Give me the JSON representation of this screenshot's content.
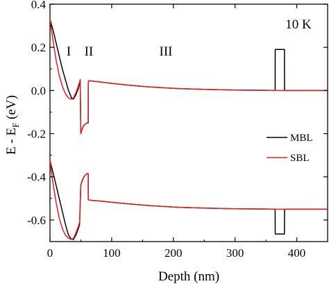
{
  "chart_data": {
    "type": "line",
    "xlabel": "Depth (nm)",
    "ylabel_main": "E - E",
    "ylabel_sub": "F",
    "ylabel_unit": " (eV)",
    "xlim": [
      0,
      450
    ],
    "ylim": [
      -0.7,
      0.4
    ],
    "xticks": [
      0,
      100,
      200,
      300,
      400
    ],
    "yticks": [
      0.4,
      0.2,
      0.0,
      -0.2,
      -0.4,
      -0.6
    ],
    "ytick_labels": [
      "0.4",
      "0.2",
      "0.0",
      "-0.2",
      "-0.4",
      "-0.6"
    ],
    "xtick_labels": [
      "0",
      "100",
      "200",
      "300",
      "400"
    ],
    "annotations": {
      "temperature": "10 K",
      "regions": [
        {
          "label": "I",
          "x": 30,
          "y": 0.18
        },
        {
          "label": "II",
          "x": 60,
          "y": 0.18
        },
        {
          "label": "III",
          "x": 185,
          "y": 0.18
        }
      ]
    },
    "legend": {
      "placement": "center-right",
      "entries": [
        {
          "name": "MBL",
          "color": "#000000"
        },
        {
          "name": "SBL",
          "color": "#e0201b"
        }
      ]
    },
    "series": [
      {
        "name": "MBL",
        "band": "conduction",
        "color": "#000000",
        "x": [
          0,
          5,
          10,
          15,
          20,
          25,
          30,
          35,
          38,
          42,
          46,
          48,
          49,
          50,
          52,
          55,
          58,
          60,
          62,
          62.1,
          63,
          65,
          70,
          80,
          100,
          130,
          160,
          200,
          250,
          300,
          350,
          365,
          365.1,
          366,
          380,
          380.1,
          381,
          400,
          450
        ],
        "y": [
          0.33,
          0.28,
          0.22,
          0.16,
          0.1,
          0.05,
          0.0,
          -0.035,
          -0.04,
          -0.02,
          0.01,
          0.03,
          0.05,
          -0.2,
          -0.18,
          -0.16,
          -0.155,
          -0.15,
          -0.15,
          0.04,
          0.045,
          0.045,
          0.043,
          0.04,
          0.033,
          0.024,
          0.017,
          0.01,
          0.005,
          0.002,
          0.001,
          0.0,
          0.19,
          0.19,
          0.19,
          0.0,
          0.0,
          0.0,
          0.0
        ]
      },
      {
        "name": "SBL",
        "band": "conduction",
        "color": "#e0201b",
        "x": [
          0,
          5,
          10,
          15,
          20,
          25,
          30,
          35,
          38,
          42,
          46,
          48,
          49,
          50,
          52,
          55,
          58,
          60,
          62,
          62.1,
          63,
          65,
          70,
          80,
          100,
          130,
          160,
          200,
          250,
          300,
          350,
          365,
          380,
          400,
          450
        ],
        "y": [
          0.33,
          0.23,
          0.14,
          0.07,
          0.02,
          -0.015,
          -0.035,
          -0.04,
          -0.035,
          -0.01,
          0.02,
          0.04,
          0.05,
          -0.2,
          -0.18,
          -0.16,
          -0.155,
          -0.15,
          -0.15,
          0.04,
          0.045,
          0.045,
          0.043,
          0.04,
          0.033,
          0.024,
          0.017,
          0.01,
          0.005,
          0.002,
          0.001,
          0.0,
          0.0,
          0.0,
          0.0
        ]
      },
      {
        "name": "MBL",
        "band": "valence",
        "color": "#000000",
        "x": [
          0,
          5,
          10,
          15,
          20,
          25,
          30,
          35,
          38,
          42,
          46,
          48,
          50,
          52,
          55,
          58,
          60,
          62,
          62.1,
          63,
          65,
          70,
          80,
          100,
          130,
          160,
          200,
          250,
          300,
          350,
          365,
          365.1,
          366,
          380,
          380.1,
          381,
          400,
          450
        ],
        "y": [
          -0.325,
          -0.38,
          -0.44,
          -0.5,
          -0.56,
          -0.62,
          -0.67,
          -0.69,
          -0.69,
          -0.67,
          -0.64,
          -0.62,
          -0.44,
          -0.42,
          -0.4,
          -0.39,
          -0.385,
          -0.385,
          -0.505,
          -0.508,
          -0.508,
          -0.51,
          -0.512,
          -0.518,
          -0.526,
          -0.533,
          -0.54,
          -0.545,
          -0.548,
          -0.549,
          -0.55,
          -0.665,
          -0.665,
          -0.665,
          -0.55,
          -0.55,
          -0.55,
          -0.55
        ]
      },
      {
        "name": "SBL",
        "band": "valence",
        "color": "#e0201b",
        "x": [
          0,
          5,
          10,
          15,
          20,
          25,
          30,
          35,
          38,
          42,
          46,
          48,
          50,
          52,
          55,
          58,
          60,
          62,
          62.1,
          63,
          65,
          70,
          80,
          100,
          130,
          160,
          200,
          250,
          300,
          350,
          365,
          380,
          400,
          450
        ],
        "y": [
          -0.325,
          -0.43,
          -0.52,
          -0.59,
          -0.64,
          -0.67,
          -0.685,
          -0.69,
          -0.685,
          -0.66,
          -0.63,
          -0.61,
          -0.44,
          -0.42,
          -0.4,
          -0.39,
          -0.385,
          -0.385,
          -0.505,
          -0.508,
          -0.508,
          -0.51,
          -0.512,
          -0.518,
          -0.526,
          -0.533,
          -0.54,
          -0.545,
          -0.548,
          -0.549,
          -0.55,
          -0.55,
          -0.55,
          -0.55
        ]
      }
    ]
  }
}
